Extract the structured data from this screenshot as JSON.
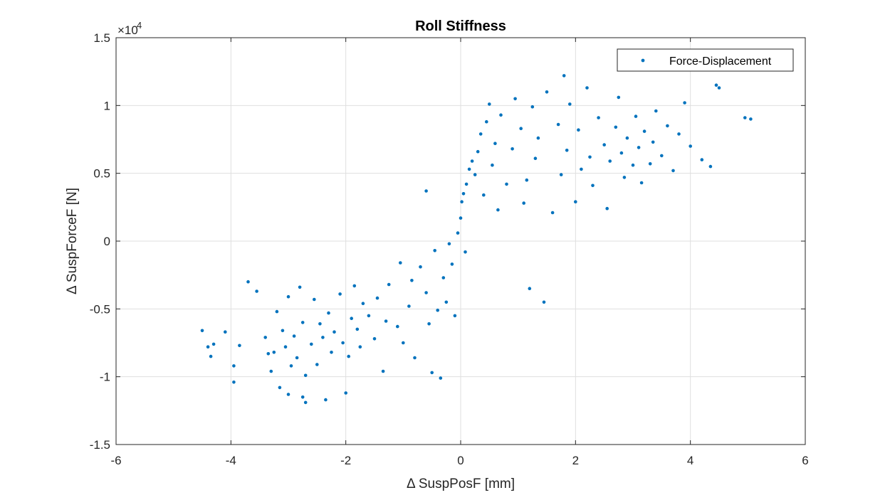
{
  "chart_data": {
    "type": "scatter",
    "title": "Roll Stiffness",
    "xlabel": "Δ SuspPosF [mm]",
    "ylabel": "Δ SuspForceF [N]",
    "xlim": [
      -6,
      6
    ],
    "ylim": [
      -15000,
      15000
    ],
    "x_ticks": [
      -6,
      -4,
      -2,
      0,
      2,
      4,
      6
    ],
    "y_ticks": [
      -1.5,
      -1,
      -0.5,
      0,
      0.5,
      1,
      1.5
    ],
    "x_tick_labels": [
      "-6",
      "-4",
      "-2",
      "0",
      "2",
      "4",
      "6"
    ],
    "y_tick_labels": [
      "-1.5",
      "-1",
      "-0.5",
      "0",
      "0.5",
      "1",
      "1.5"
    ],
    "y_exponent_label": "×10",
    "y_exponent_power": "4",
    "grid": true,
    "legend_position": "top-right",
    "series": [
      {
        "name": "Force-Displacement",
        "color": "#0072BD",
        "marker": "dot",
        "points": [
          [
            -4.5,
            -6600
          ],
          [
            -4.4,
            -7800
          ],
          [
            -4.35,
            -8500
          ],
          [
            -4.3,
            -7600
          ],
          [
            -4.1,
            -6700
          ],
          [
            -3.95,
            -9200
          ],
          [
            -3.95,
            -10400
          ],
          [
            -3.85,
            -7700
          ],
          [
            -3.7,
            -3000
          ],
          [
            -3.55,
            -3700
          ],
          [
            -3.4,
            -7100
          ],
          [
            -3.35,
            -8300
          ],
          [
            -3.3,
            -9600
          ],
          [
            -3.25,
            -8200
          ],
          [
            -3.2,
            -5200
          ],
          [
            -3.15,
            -10800
          ],
          [
            -3.1,
            -6600
          ],
          [
            -3.05,
            -7800
          ],
          [
            -3.0,
            -11300
          ],
          [
            -3.0,
            -4100
          ],
          [
            -2.95,
            -9200
          ],
          [
            -2.9,
            -7000
          ],
          [
            -2.85,
            -8600
          ],
          [
            -2.8,
            -3400
          ],
          [
            -2.75,
            -11500
          ],
          [
            -2.75,
            -6000
          ],
          [
            -2.7,
            -9900
          ],
          [
            -2.7,
            -11900
          ],
          [
            -2.6,
            -7600
          ],
          [
            -2.55,
            -4300
          ],
          [
            -2.5,
            -9100
          ],
          [
            -2.45,
            -6100
          ],
          [
            -2.4,
            -7100
          ],
          [
            -2.35,
            -11700
          ],
          [
            -2.3,
            -5300
          ],
          [
            -2.25,
            -8200
          ],
          [
            -2.2,
            -6700
          ],
          [
            -2.1,
            -3900
          ],
          [
            -2.05,
            -7500
          ],
          [
            -2.0,
            -11200
          ],
          [
            -1.95,
            -8500
          ],
          [
            -1.9,
            -5700
          ],
          [
            -1.85,
            -3300
          ],
          [
            -1.8,
            -6500
          ],
          [
            -1.75,
            -7800
          ],
          [
            -1.7,
            -4600
          ],
          [
            -1.6,
            -5500
          ],
          [
            -1.5,
            -7200
          ],
          [
            -1.45,
            -4200
          ],
          [
            -1.35,
            -9600
          ],
          [
            -1.3,
            -5900
          ],
          [
            -1.25,
            -3200
          ],
          [
            -1.1,
            -6300
          ],
          [
            -1.05,
            -1600
          ],
          [
            -1.0,
            -7500
          ],
          [
            -0.9,
            -4800
          ],
          [
            -0.85,
            -2900
          ],
          [
            -0.8,
            -8600
          ],
          [
            -0.7,
            -1900
          ],
          [
            -0.6,
            -3800
          ],
          [
            -0.6,
            3700
          ],
          [
            -0.55,
            -6100
          ],
          [
            -0.5,
            -9700
          ],
          [
            -0.45,
            -700
          ],
          [
            -0.4,
            -5100
          ],
          [
            -0.35,
            -10100
          ],
          [
            -0.3,
            -2700
          ],
          [
            -0.25,
            -4500
          ],
          [
            -0.2,
            -200
          ],
          [
            -0.15,
            -1700
          ],
          [
            -0.1,
            -5500
          ],
          [
            -0.05,
            600
          ],
          [
            0.0,
            1700
          ],
          [
            0.02,
            2900
          ],
          [
            0.05,
            3500
          ],
          [
            0.08,
            -800
          ],
          [
            0.1,
            4200
          ],
          [
            0.15,
            5300
          ],
          [
            0.2,
            5900
          ],
          [
            0.25,
            4900
          ],
          [
            0.3,
            6600
          ],
          [
            0.35,
            7900
          ],
          [
            0.4,
            3400
          ],
          [
            0.45,
            8800
          ],
          [
            0.5,
            10100
          ],
          [
            0.55,
            5600
          ],
          [
            0.6,
            7200
          ],
          [
            0.65,
            2300
          ],
          [
            0.7,
            9300
          ],
          [
            0.8,
            4200
          ],
          [
            0.9,
            6800
          ],
          [
            0.95,
            10500
          ],
          [
            1.05,
            8300
          ],
          [
            1.1,
            2800
          ],
          [
            1.15,
            4500
          ],
          [
            1.2,
            -3500
          ],
          [
            1.25,
            9900
          ],
          [
            1.3,
            6100
          ],
          [
            1.35,
            7600
          ],
          [
            1.45,
            -4500
          ],
          [
            1.5,
            11000
          ],
          [
            1.6,
            2100
          ],
          [
            1.7,
            8600
          ],
          [
            1.75,
            4900
          ],
          [
            1.8,
            12200
          ],
          [
            1.85,
            6700
          ],
          [
            1.9,
            10100
          ],
          [
            2.0,
            2900
          ],
          [
            2.05,
            8200
          ],
          [
            2.1,
            5300
          ],
          [
            2.2,
            11300
          ],
          [
            2.25,
            6200
          ],
          [
            2.3,
            4100
          ],
          [
            2.4,
            9100
          ],
          [
            2.5,
            7100
          ],
          [
            2.55,
            2400
          ],
          [
            2.6,
            5900
          ],
          [
            2.7,
            8400
          ],
          [
            2.75,
            10600
          ],
          [
            2.8,
            6500
          ],
          [
            2.85,
            4700
          ],
          [
            2.9,
            7600
          ],
          [
            3.0,
            5600
          ],
          [
            3.05,
            9200
          ],
          [
            3.1,
            6900
          ],
          [
            3.15,
            4300
          ],
          [
            3.2,
            8100
          ],
          [
            3.3,
            5700
          ],
          [
            3.35,
            7300
          ],
          [
            3.4,
            9600
          ],
          [
            3.5,
            6300
          ],
          [
            3.6,
            8500
          ],
          [
            3.7,
            5200
          ],
          [
            3.8,
            7900
          ],
          [
            3.9,
            10200
          ],
          [
            4.0,
            7000
          ],
          [
            4.2,
            6000
          ],
          [
            4.35,
            5500
          ],
          [
            4.45,
            11500
          ],
          [
            4.5,
            11300
          ],
          [
            4.95,
            9100
          ],
          [
            5.05,
            9000
          ]
        ]
      }
    ]
  }
}
